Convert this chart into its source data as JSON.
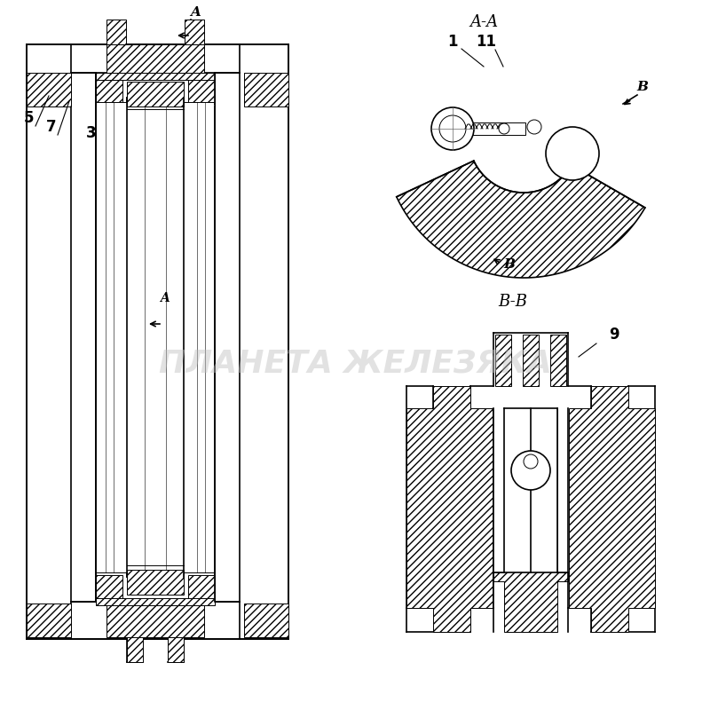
{
  "bg_color": "#ffffff",
  "line_color": "#000000",
  "hatch_color": "#000000",
  "watermark_text": "ПЛАНЕТА ЖЕЛЕЗЯКА",
  "watermark_color": "#c0c0c0",
  "watermark_alpha": 0.45,
  "labels": {
    "A_top": "A",
    "AA": "A-A",
    "BB": "B-B",
    "B_marker": "B",
    "B_marker2": "B",
    "num_5": "5",
    "num_7": "7",
    "num_3": "3",
    "num_A_mid": "A",
    "num_1": "1",
    "num_11": "11",
    "num_9": "9"
  }
}
